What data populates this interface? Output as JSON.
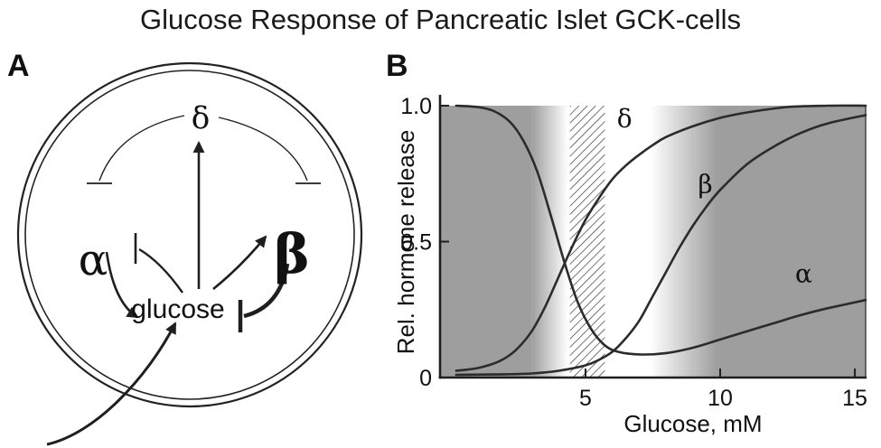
{
  "figure_title": "Glucose Response of Pancreatic Islet GCK-cells",
  "panels": {
    "a": {
      "label": "A",
      "delta": "δ",
      "alpha": "α",
      "beta": "β",
      "glucose": "glucose"
    },
    "b": {
      "label": "B"
    }
  },
  "chart_data": {
    "type": "line",
    "title": "",
    "xlabel": "Glucose, mM",
    "ylabel": "Rel. hormone release",
    "xlim": [
      -0.4,
      15.4
    ],
    "ylim": [
      0,
      1.0
    ],
    "xticks": [
      5,
      10,
      15
    ],
    "yticks": [
      0,
      0.5,
      1.0
    ],
    "ytick_labels": [
      "0",
      "0.5",
      "1.0"
    ],
    "curve_color": "#2b2b2b",
    "axis_color": "#1f1f1f",
    "series": [
      {
        "name": "alpha",
        "label": "α",
        "label_pos": [
          13.1,
          0.35
        ],
        "points": [
          [
            0.2,
            1.0
          ],
          [
            1.0,
            0.995
          ],
          [
            1.6,
            0.98
          ],
          [
            2.2,
            0.94
          ],
          [
            2.7,
            0.87
          ],
          [
            3.2,
            0.76
          ],
          [
            3.7,
            0.6
          ],
          [
            4.2,
            0.43
          ],
          [
            4.7,
            0.28
          ],
          [
            5.2,
            0.18
          ],
          [
            5.7,
            0.12
          ],
          [
            6.2,
            0.095
          ],
          [
            7.0,
            0.085
          ],
          [
            8.0,
            0.09
          ],
          [
            9.0,
            0.11
          ],
          [
            10.0,
            0.14
          ],
          [
            11.0,
            0.17
          ],
          [
            12.0,
            0.2
          ],
          [
            13.0,
            0.23
          ],
          [
            14.0,
            0.255
          ],
          [
            15.4,
            0.285
          ]
        ]
      },
      {
        "name": "delta",
        "label": "δ",
        "label_pos": [
          6.45,
          0.92
        ],
        "points": [
          [
            0.2,
            0.025
          ],
          [
            1.0,
            0.035
          ],
          [
            1.8,
            0.06
          ],
          [
            2.4,
            0.1
          ],
          [
            3.0,
            0.17
          ],
          [
            3.5,
            0.26
          ],
          [
            4.0,
            0.37
          ],
          [
            4.5,
            0.48
          ],
          [
            5.0,
            0.58
          ],
          [
            5.5,
            0.66
          ],
          [
            6.0,
            0.73
          ],
          [
            6.5,
            0.78
          ],
          [
            7.0,
            0.82
          ],
          [
            7.5,
            0.855
          ],
          [
            8.0,
            0.885
          ],
          [
            9.0,
            0.925
          ],
          [
            10.0,
            0.955
          ],
          [
            11.0,
            0.975
          ],
          [
            12.5,
            0.995
          ],
          [
            14.0,
            1.0
          ],
          [
            15.4,
            1.0
          ]
        ]
      },
      {
        "name": "beta",
        "label": "β",
        "label_pos": [
          9.45,
          0.68
        ],
        "points": [
          [
            0.2,
            0.01
          ],
          [
            2.0,
            0.012
          ],
          [
            3.0,
            0.015
          ],
          [
            4.0,
            0.025
          ],
          [
            5.0,
            0.045
          ],
          [
            5.5,
            0.065
          ],
          [
            6.0,
            0.095
          ],
          [
            6.5,
            0.145
          ],
          [
            7.0,
            0.21
          ],
          [
            7.5,
            0.3
          ],
          [
            8.0,
            0.39
          ],
          [
            8.5,
            0.48
          ],
          [
            9.0,
            0.56
          ],
          [
            9.5,
            0.63
          ],
          [
            10.0,
            0.69
          ],
          [
            11.0,
            0.785
          ],
          [
            12.0,
            0.85
          ],
          [
            13.0,
            0.9
          ],
          [
            14.0,
            0.935
          ],
          [
            15.4,
            0.965
          ]
        ]
      }
    ],
    "shading": {
      "gray_color": "#9e9e9e",
      "left_solid_until": 3.0,
      "left_fade_until": 4.35,
      "hatch_band": [
        4.42,
        5.72
      ],
      "right_fade_from": 7.4,
      "right_solid_from": 9.9
    }
  }
}
